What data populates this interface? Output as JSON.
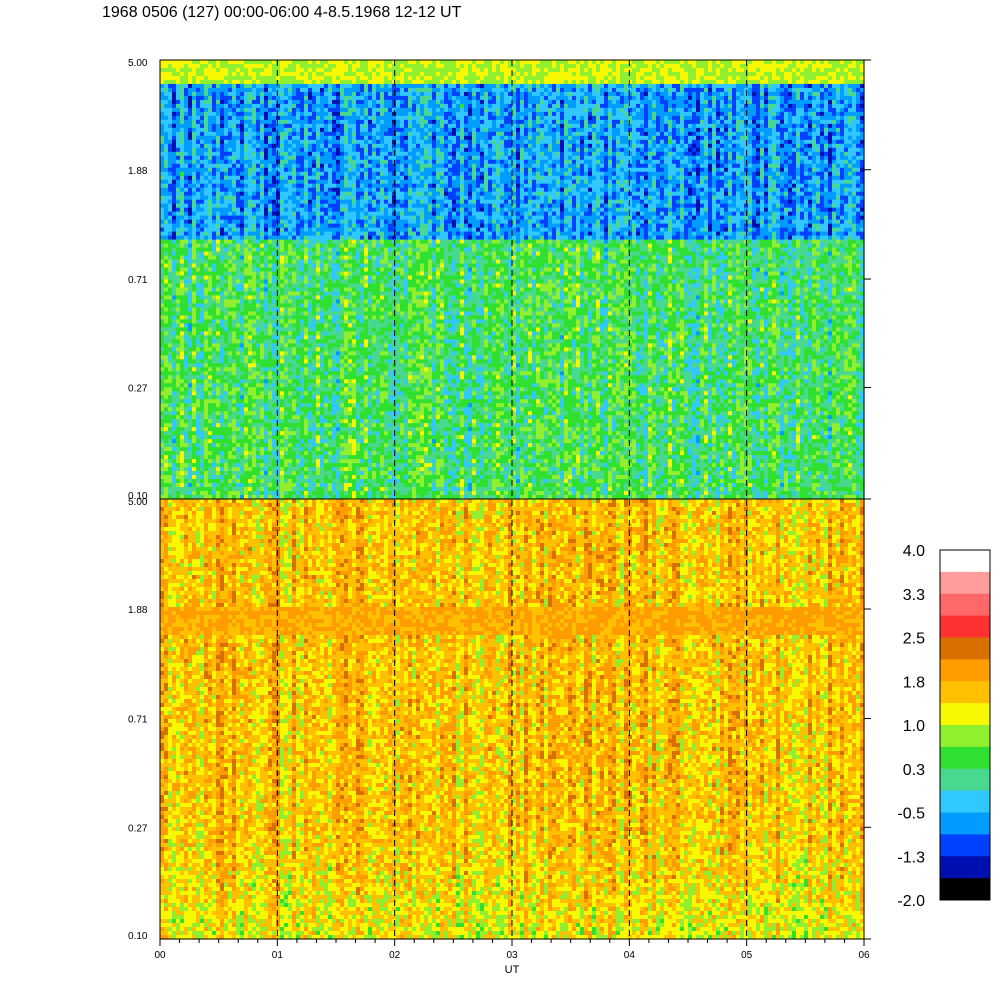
{
  "header": {
    "title": "1968 0506 (127) 00:00-06:00 4-8.5.1968  12-12 UT"
  },
  "chart_data": {
    "type": "heatmap",
    "title": "1968 0506 (127) 00:00-06:00 4-8.5.1968  12-12 UT",
    "xlabel": "UT",
    "x_ticks": [
      "00",
      "01",
      "02",
      "03",
      "04",
      "05",
      "06"
    ],
    "xlim": [
      0,
      6
    ],
    "panels": [
      {
        "name": "upper",
        "y_ticks": [
          "5.00",
          "1.88",
          "0.71",
          "0.27",
          "0.10"
        ],
        "ylim": [
          0.1,
          5.0
        ],
        "y_scale": "log",
        "background_level": 0.3,
        "features": [
          {
            "description": "narrow enhanced band near top",
            "y": 4.5,
            "level": 1.0
          },
          {
            "description": "depleted region upper half",
            "y_range": [
              1.0,
              4.0
            ],
            "level": -1.0
          }
        ]
      },
      {
        "name": "lower",
        "y_ticks": [
          "5.00",
          "1.88",
          "0.71",
          "0.27",
          "0.10"
        ],
        "ylim": [
          0.1,
          5.0
        ],
        "y_scale": "log",
        "background_level": 1.6,
        "features": [
          {
            "description": "enhanced band",
            "y": 1.7,
            "level": 1.8
          }
        ]
      }
    ],
    "colorbar": {
      "labels": [
        "4.0",
        "3.3",
        "2.5",
        "1.8",
        "1.0",
        "0.3",
        "-0.5",
        "-1.3",
        "-2.0"
      ],
      "range": [
        -2.0,
        4.0
      ],
      "colors": [
        "#000000",
        "#0010b0",
        "#0040ff",
        "#009cff",
        "#30c8ff",
        "#48d890",
        "#30e030",
        "#90f030",
        "#f8f800",
        "#ffc000",
        "#ff9c00",
        "#d87000",
        "#ff3030",
        "#ff6868",
        "#ff9c9c",
        "#ffffff"
      ]
    }
  }
}
